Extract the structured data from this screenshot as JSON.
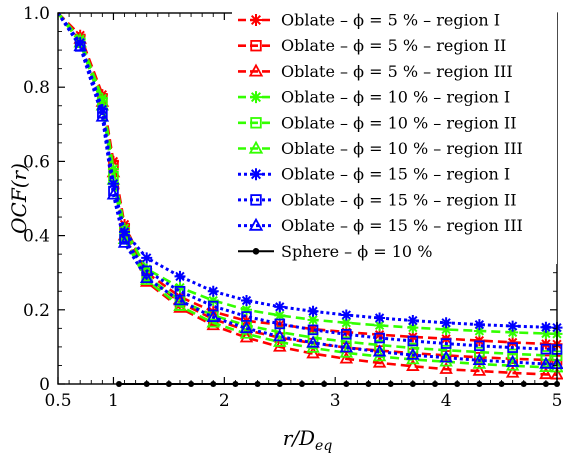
{
  "chart_data": {
    "type": "line",
    "xlabel": "r/D_eq",
    "ylabel": "OCF(r)",
    "xlim": [
      0.5,
      5
    ],
    "ylim": [
      0,
      1
    ],
    "xticks": [
      0.5,
      1,
      2,
      3,
      4,
      5
    ],
    "yticks": [
      0,
      0.2,
      0.4,
      0.6,
      0.8,
      1.0
    ],
    "xtick_labels": [
      "0.5",
      "1",
      "2",
      "3",
      "4",
      "5"
    ],
    "ytick_labels": [
      "0",
      "0.2",
      "0.4",
      "0.6",
      "0.8",
      "1.0"
    ],
    "grid": false,
    "legend_position": "top-right",
    "series": [
      {
        "name": "Oblate – ϕ = 5 % – region I",
        "color": "#ff0000",
        "dash": "dash",
        "marker": "asterisk",
        "x": [
          0.5,
          0.7,
          0.9,
          1.0,
          1.1,
          1.3,
          1.6,
          1.9,
          2.2,
          2.5,
          2.8,
          3.1,
          3.4,
          3.7,
          4.0,
          4.3,
          4.6,
          4.9,
          5.0
        ],
        "y": [
          1.0,
          0.94,
          0.78,
          0.6,
          0.43,
          0.3,
          0.235,
          0.195,
          0.17,
          0.16,
          0.148,
          0.14,
          0.133,
          0.127,
          0.122,
          0.117,
          0.112,
          0.108,
          0.107
        ]
      },
      {
        "name": "Oblate – ϕ = 5 % – region II",
        "color": "#ff0000",
        "dash": "dash",
        "marker": "square",
        "x": [
          0.5,
          0.7,
          0.9,
          1.0,
          1.1,
          1.3,
          1.6,
          1.9,
          2.2,
          2.5,
          2.8,
          3.1,
          3.4,
          3.7,
          4.0,
          4.3,
          4.6,
          4.9,
          5.0
        ],
        "y": [
          1.0,
          0.93,
          0.77,
          0.59,
          0.42,
          0.29,
          0.22,
          0.175,
          0.145,
          0.125,
          0.11,
          0.098,
          0.09,
          0.083,
          0.077,
          0.072,
          0.068,
          0.065,
          0.064
        ]
      },
      {
        "name": "Oblate – ϕ = 5 % – region III",
        "color": "#ff0000",
        "dash": "dash",
        "marker": "triangle",
        "x": [
          0.5,
          0.7,
          0.9,
          1.0,
          1.1,
          1.3,
          1.6,
          1.9,
          2.2,
          2.5,
          2.8,
          3.1,
          3.4,
          3.7,
          4.0,
          4.3,
          4.6,
          4.9,
          5.0
        ],
        "y": [
          1.0,
          0.93,
          0.76,
          0.57,
          0.4,
          0.275,
          0.205,
          0.158,
          0.125,
          0.1,
          0.082,
          0.068,
          0.057,
          0.048,
          0.04,
          0.035,
          0.03,
          0.026,
          0.025
        ]
      },
      {
        "name": "Oblate – ϕ = 10 % – region I",
        "color": "#33ff00",
        "dash": "dash",
        "marker": "asterisk",
        "x": [
          0.5,
          0.7,
          0.9,
          1.0,
          1.1,
          1.3,
          1.6,
          1.9,
          2.2,
          2.5,
          2.8,
          3.1,
          3.4,
          3.7,
          4.0,
          4.3,
          4.6,
          4.9,
          5.0
        ],
        "y": [
          1.0,
          0.93,
          0.77,
          0.58,
          0.42,
          0.31,
          0.26,
          0.225,
          0.2,
          0.185,
          0.173,
          0.165,
          0.158,
          0.152,
          0.147,
          0.143,
          0.139,
          0.136,
          0.135
        ]
      },
      {
        "name": "Oblate – ϕ = 10 % – region II",
        "color": "#33ff00",
        "dash": "dash",
        "marker": "square",
        "x": [
          0.5,
          0.7,
          0.9,
          1.0,
          1.1,
          1.3,
          1.6,
          1.9,
          2.2,
          2.5,
          2.8,
          3.1,
          3.4,
          3.7,
          4.0,
          4.3,
          4.6,
          4.9,
          5.0
        ],
        "y": [
          1.0,
          0.92,
          0.76,
          0.56,
          0.4,
          0.29,
          0.225,
          0.185,
          0.158,
          0.14,
          0.125,
          0.114,
          0.105,
          0.097,
          0.091,
          0.086,
          0.081,
          0.077,
          0.076
        ]
      },
      {
        "name": "Oblate – ϕ = 10 % – region III",
        "color": "#33ff00",
        "dash": "dash",
        "marker": "triangle",
        "x": [
          0.5,
          0.7,
          0.9,
          1.0,
          1.1,
          1.3,
          1.6,
          1.9,
          2.2,
          2.5,
          2.8,
          3.1,
          3.4,
          3.7,
          4.0,
          4.3,
          4.6,
          4.9,
          5.0
        ],
        "y": [
          1.0,
          0.92,
          0.75,
          0.55,
          0.39,
          0.28,
          0.21,
          0.165,
          0.135,
          0.113,
          0.097,
          0.084,
          0.074,
          0.066,
          0.06,
          0.054,
          0.049,
          0.045,
          0.044
        ]
      },
      {
        "name": "Oblate – ϕ = 15 % – region I",
        "color": "#0000ff",
        "dash": "dot",
        "marker": "asterisk",
        "x": [
          0.5,
          0.7,
          0.9,
          1.0,
          1.1,
          1.3,
          1.6,
          1.9,
          2.2,
          2.5,
          2.8,
          3.1,
          3.4,
          3.7,
          4.0,
          4.3,
          4.6,
          4.9,
          5.0
        ],
        "y": [
          1.0,
          0.92,
          0.74,
          0.54,
          0.41,
          0.34,
          0.29,
          0.25,
          0.225,
          0.208,
          0.196,
          0.186,
          0.178,
          0.171,
          0.165,
          0.16,
          0.156,
          0.153,
          0.152
        ]
      },
      {
        "name": "Oblate – ϕ = 15 % – region II",
        "color": "#0000ff",
        "dash": "dot",
        "marker": "square",
        "x": [
          0.5,
          0.7,
          0.9,
          1.0,
          1.1,
          1.3,
          1.6,
          1.9,
          2.2,
          2.5,
          2.8,
          3.1,
          3.4,
          3.7,
          4.0,
          4.3,
          4.6,
          4.9,
          5.0
        ],
        "y": [
          1.0,
          0.91,
          0.73,
          0.52,
          0.39,
          0.305,
          0.25,
          0.21,
          0.182,
          0.162,
          0.146,
          0.134,
          0.124,
          0.116,
          0.109,
          0.103,
          0.098,
          0.094,
          0.093
        ]
      },
      {
        "name": "Oblate – ϕ = 15 % – region III",
        "color": "#0000ff",
        "dash": "dot",
        "marker": "triangle",
        "x": [
          0.5,
          0.7,
          0.9,
          1.0,
          1.1,
          1.3,
          1.6,
          1.9,
          2.2,
          2.5,
          2.8,
          3.1,
          3.4,
          3.7,
          4.0,
          4.3,
          4.6,
          4.9,
          5.0
        ],
        "y": [
          1.0,
          0.91,
          0.72,
          0.51,
          0.38,
          0.285,
          0.225,
          0.18,
          0.15,
          0.128,
          0.111,
          0.098,
          0.087,
          0.078,
          0.071,
          0.064,
          0.059,
          0.054,
          0.053
        ]
      },
      {
        "name": "Sphere – ϕ = 10 %",
        "color": "#000000",
        "dash": "solid",
        "marker": "circle",
        "x": [
          1.05,
          1.3,
          1.5,
          1.7,
          1.9,
          2.1,
          2.3,
          2.5,
          2.7,
          2.9,
          3.1,
          3.3,
          3.5,
          3.7,
          3.9,
          4.1,
          4.3,
          4.5,
          4.7,
          4.9,
          5.0
        ],
        "y": [
          0,
          0,
          0,
          0,
          0,
          0,
          0,
          0,
          0,
          0,
          0,
          0,
          0,
          0,
          0,
          0,
          0,
          0,
          0,
          0,
          0
        ]
      }
    ]
  }
}
